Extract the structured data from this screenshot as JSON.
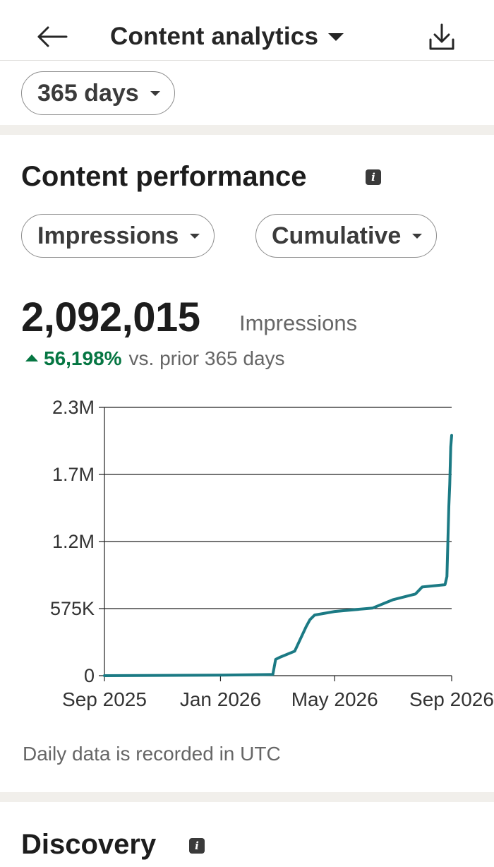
{
  "header": {
    "title": "Content analytics",
    "back_icon": "arrow-left-icon",
    "download_icon": "download-icon"
  },
  "filters": {
    "period": "365 days",
    "metric": "Impressions",
    "mode": "Cumulative"
  },
  "performance": {
    "title": "Content performance",
    "total": "2,092,015",
    "unit": "Impressions",
    "change_pct": "56,198%",
    "change_text": "vs. prior 365 days",
    "positive_color": "#057642",
    "footnote": "Daily data is recorded in UTC"
  },
  "discovery": {
    "title": "Discovery"
  },
  "chart_data": {
    "type": "line",
    "y_ticks": [
      "0",
      "575K",
      "1.2M",
      "1.7M",
      "2.3M"
    ],
    "y_tick_values": [
      0,
      575000,
      1150000,
      1725000,
      2300000
    ],
    "x_ticks": [
      "Sep 2025",
      "Jan 2026",
      "May 2026",
      "Sep 2026"
    ],
    "x_tick_dates": [
      "2025-09-01",
      "2026-01-01",
      "2026-05-01",
      "2026-09-01"
    ],
    "ylim": [
      0,
      2300000
    ],
    "grid": "horizontal",
    "line_color": "#1b7a84",
    "series": [
      {
        "x": [
          "2025-09-01",
          "2026-01-01",
          "2026-02-25",
          "2026-02-28",
          "2026-03-05",
          "2026-03-20",
          "2026-04-01",
          "2026-04-05",
          "2026-04-10",
          "2026-05-01",
          "2026-06-10",
          "2026-07-01",
          "2026-07-25",
          "2026-08-01",
          "2026-08-25",
          "2026-08-27",
          "2026-08-29",
          "2026-08-30",
          "2026-08-31",
          "2026-09-01"
        ],
        "y": [
          0,
          5000,
          10000,
          140000,
          160000,
          210000,
          420000,
          480000,
          520000,
          550000,
          580000,
          650000,
          700000,
          760000,
          780000,
          850000,
          1450000,
          1640000,
          1960000,
          2060000
        ]
      }
    ]
  }
}
